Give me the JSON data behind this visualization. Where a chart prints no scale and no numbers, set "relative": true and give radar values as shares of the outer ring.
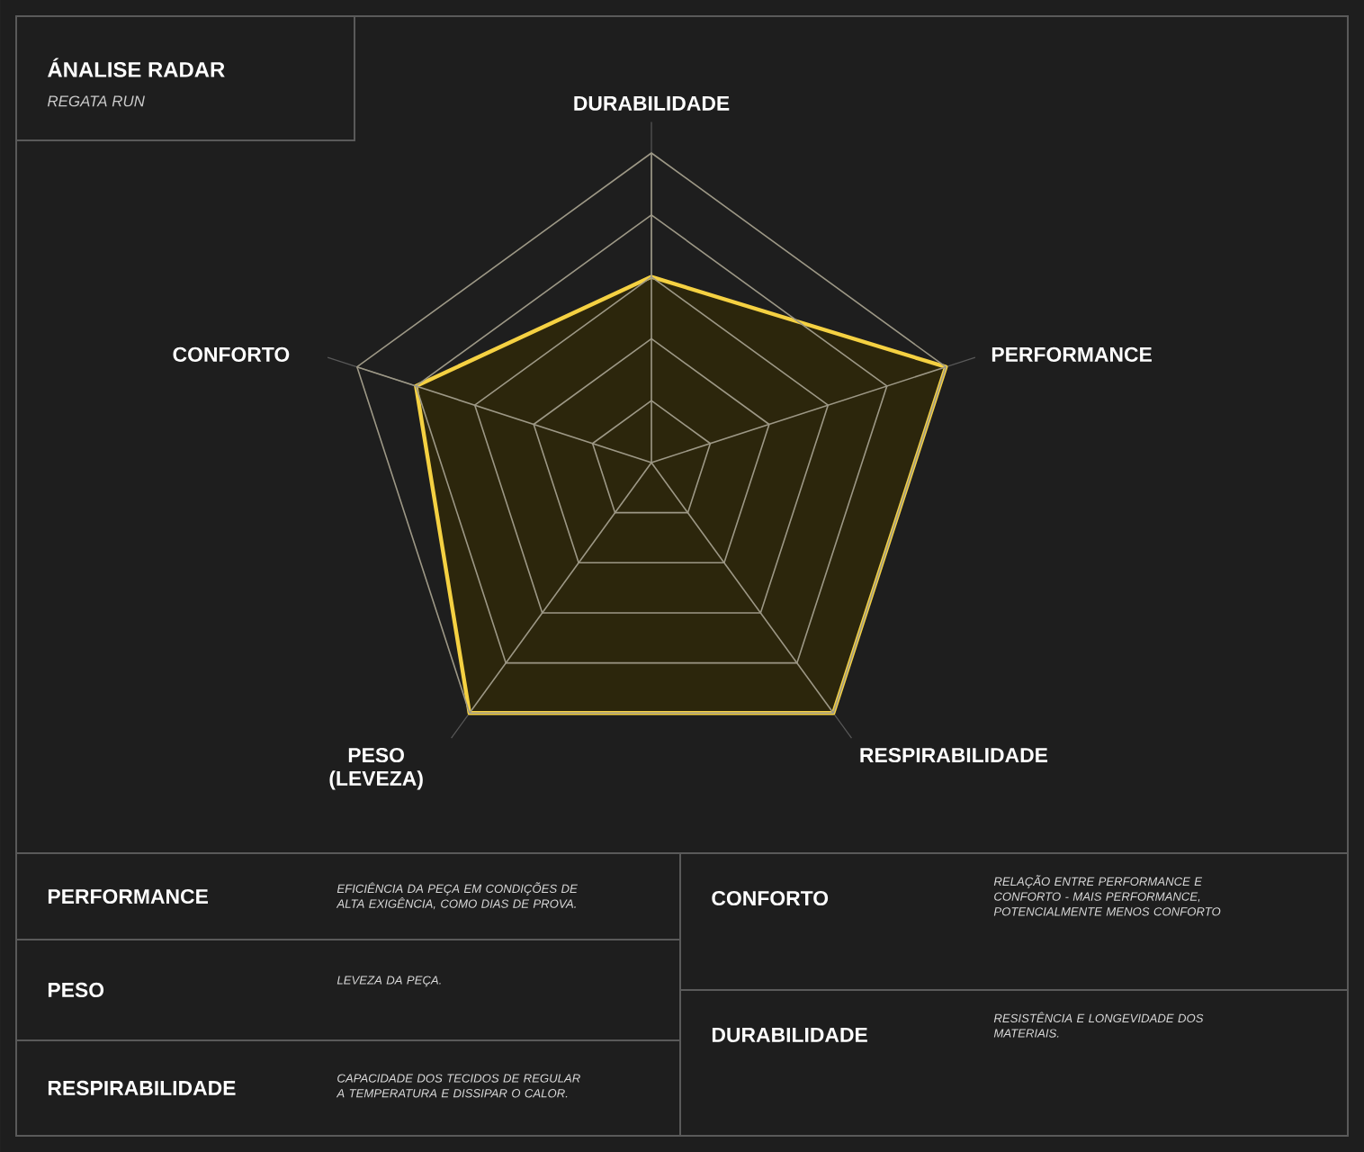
{
  "chart_data": [
    {
      "type": "radar",
      "title": "ÁNALISE RADAR",
      "subtitle": "REGATA RUN",
      "categories": [
        "DURABILIDADE",
        "PERFORMANCE",
        "RESPIRABILIDADE",
        "PESO (LEVEZA)",
        "CONFORTO"
      ],
      "relative": true,
      "grid": true,
      "series": [
        {
          "color": "#f5d142",
          "values": [
            0.6,
            1,
            1,
            1,
            0.8
          ]
        }
      ]
    },
    {
      "type": "other",
      "annotations": [
        "PERFORMANCE",
        "EFICIÊNCIA DA PEÇA EM CONDIÇÕES DE ALTA EXIGÊNCIA, COMO DIAS DE PROVA.",
        "PESO",
        "LEVEZA DA PEÇA.",
        "RESPIRABILIDADE",
        "CAPACIDADE DOS TECIDOS DE REGULAR A TEMPERATURA E DISSIPAR O CALOR.",
        "CONFORTO",
        "RELAÇÃO ENTRE PERFORMANCE E CONFORTO - MAIS PERFORMANCE, POTENCIALMENTE MENOS CONFORTO",
        "DURABILIDADE",
        "RESISTÊNCIA E LONGEVIDADE DOS MATERIAIS."
      ]
    }
  ]
}
